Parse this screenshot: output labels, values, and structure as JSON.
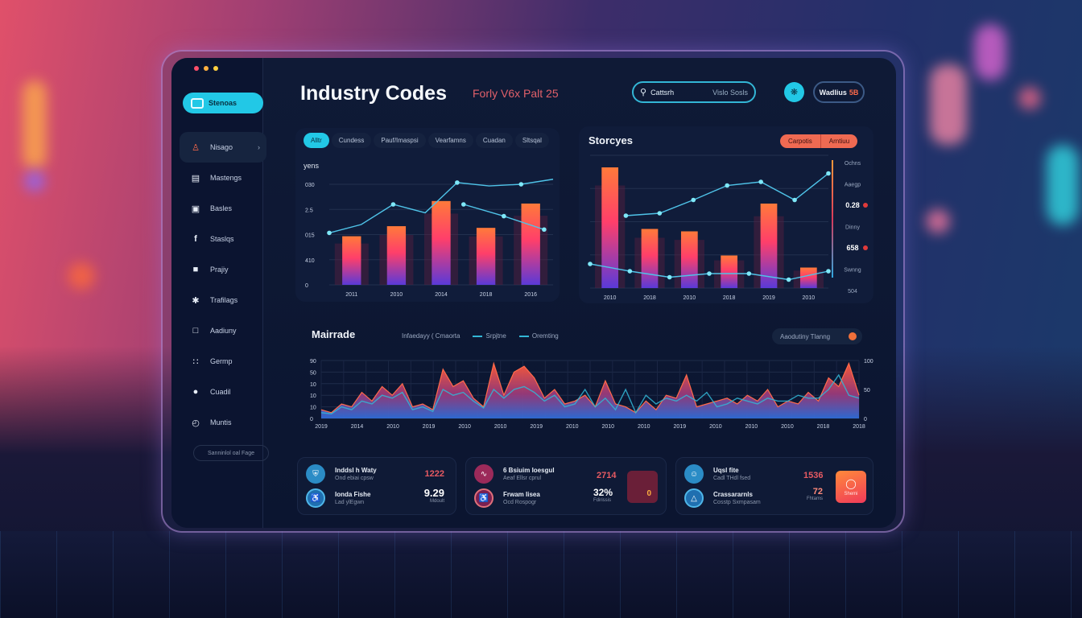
{
  "window": {
    "controls": [
      "close",
      "minimize",
      "maximize"
    ]
  },
  "brand": {
    "label": "Stenoas",
    "icon": "dashboard-icon"
  },
  "sidebar": {
    "items": [
      {
        "label": "Nisago",
        "icon": "user-stamp-icon",
        "active": true
      },
      {
        "label": "Mastengs",
        "icon": "card-icon"
      },
      {
        "label": "Basles",
        "icon": "grid-box-icon"
      },
      {
        "label": "Staslqs",
        "icon": "facebook-icon"
      },
      {
        "label": "Prajiy",
        "icon": "lock-icon"
      },
      {
        "label": "Trafilags",
        "icon": "gear-icon"
      },
      {
        "label": "Aadiuny",
        "icon": "monitor-icon"
      },
      {
        "label": "Germp",
        "icon": "dots-grid-icon"
      },
      {
        "label": "Cuadil",
        "icon": "person-icon"
      },
      {
        "label": "Muntis",
        "icon": "clock-icon"
      }
    ],
    "footer_button": "Sanninlol oal Fage"
  },
  "header": {
    "title": "Industry Codes",
    "subtitle": "Forly V6x Palt 25",
    "search": {
      "value": "Cattsrh",
      "placeholder": "Vislo Sosls"
    },
    "icon_button": "settings-bug-icon",
    "account_button": {
      "label": "Wadlius",
      "badge": "5B"
    }
  },
  "left_chart_card": {
    "tabs": [
      "Alltr",
      "Cundess",
      "Pauf/Imaspsi",
      "Vearfamns",
      "Cuadan",
      "Sltsqal"
    ],
    "active_tab": 0
  },
  "right_chart_card": {
    "title": "Storcyes",
    "segments": [
      "Carpotis",
      "Arntiuu"
    ]
  },
  "bottom_chart_card": {
    "title": "Mairrade",
    "legend": [
      "Infaedayy ( Cmaorta",
      "Srpjtne",
      "Oremting"
    ],
    "toggle_label": "Aaodutiny Tlanng"
  },
  "chart_data": [
    {
      "type": "bar",
      "title": "",
      "ylabel": "yens",
      "yticks": [
        "0",
        "410",
        "015",
        "2.5",
        "030"
      ],
      "categories": [
        "2011",
        "2010",
        "2014",
        "2018",
        "2016"
      ],
      "values": [
        58,
        70,
        100,
        68,
        97
      ],
      "ylim": [
        0,
        120
      ],
      "line_series": [
        {
          "name": "trend-a",
          "values": [
            62,
            72,
            96,
            86,
            122,
            118,
            120,
            126
          ]
        },
        {
          "name": "trend-b",
          "values": [
            96,
            82,
            66
          ]
        }
      ],
      "colors": {
        "bar_top": "#ff7a3a",
        "bar_mid": "#ff3f6a",
        "bar_bottom": "#5a3ad8",
        "line": "#4fc3e8"
      }
    },
    {
      "type": "bar",
      "title": "Storcyes",
      "categories": [
        "2010",
        "2018",
        "2010",
        "2018",
        "2019",
        "2010"
      ],
      "values": [
        100,
        49,
        47,
        27,
        70,
        17
      ],
      "ylim": [
        0,
        110
      ],
      "right_axis_labels": [
        "Ochns",
        "Aaegp",
        "0.28",
        "Dinny",
        "658",
        "Swnng",
        "504"
      ],
      "line_series": [
        {
          "name": "upper",
          "values": [
            60,
            62,
            73,
            85,
            88,
            73,
            95
          ]
        },
        {
          "name": "lower",
          "values": [
            20,
            14,
            9,
            12,
            12,
            7,
            14
          ]
        }
      ],
      "colors": {
        "bar_top": "#ff7a3a",
        "bar_mid": "#ff3f6a",
        "bar_bottom": "#5a3ad8",
        "line": "#4fc3e8"
      }
    },
    {
      "type": "area",
      "title": "Mairrade",
      "yticks_left": [
        "0",
        "10",
        "10",
        "10",
        "50",
        "90"
      ],
      "yticks_right": [
        "0",
        "50",
        "100"
      ],
      "x": [
        "2019",
        "2014",
        "2010",
        "2019",
        "2010",
        "2010",
        "2019",
        "2010",
        "2010",
        "2010",
        "2019",
        "2010",
        "2010",
        "2010",
        "2018",
        "2018"
      ],
      "series": [
        {
          "name": "Infaedayy ( Cmaorta",
          "values": [
            15,
            10,
            25,
            20,
            45,
            30,
            55,
            40,
            60,
            20,
            25,
            15,
            85,
            55,
            65,
            35,
            20,
            95,
            40,
            80,
            90,
            70,
            35,
            50,
            25,
            30,
            40,
            20,
            65,
            25,
            20,
            10,
            30,
            15,
            40,
            35,
            75,
            20,
            25,
            30,
            35,
            25,
            40,
            30,
            50,
            20,
            30,
            25,
            45,
            30,
            70,
            55,
            95,
            40
          ]
        },
        {
          "name": "Srpjtne",
          "values": [
            10,
            8,
            20,
            15,
            30,
            25,
            40,
            35,
            45,
            15,
            20,
            12,
            50,
            40,
            45,
            30,
            18,
            50,
            35,
            50,
            55,
            45,
            30,
            40,
            20,
            25,
            50,
            20,
            35,
            15,
            50,
            10,
            40,
            25,
            35,
            30,
            40,
            30,
            45,
            20,
            25,
            35,
            30,
            25,
            35,
            30,
            30,
            40,
            35,
            35,
            50,
            75,
            40,
            35
          ]
        }
      ],
      "colors": {
        "area_top": "#ff5a3a",
        "area_bottom": "#2f6cd8",
        "line": "#33b6d6"
      }
    }
  ],
  "stats": [
    {
      "rows": [
        {
          "name": "Inddsl h Waty",
          "sub": "Ond ebiai cpsw",
          "value": "1222",
          "value_color": "#e65a62",
          "icon": "shield-icon",
          "icon_color": "#2b8cc6"
        },
        {
          "name": "Ionda Fishe",
          "sub": "Lad ylEgwn",
          "value": "9.29",
          "unit": "Mdoult",
          "value_color": "#ffffff",
          "icon": "accessibility-icon",
          "icon_color": "#1f6fb0"
        }
      ]
    },
    {
      "rows": [
        {
          "name": "6 Bsiuim Ioesgul",
          "sub": "Aeaf Ellsr cprul",
          "value": "2714",
          "value_color": "#e65a62",
          "icon": "signature-icon",
          "icon_color": "#9c2a5a"
        },
        {
          "name": "Frwam Iisea",
          "sub": "Ocd Rospogr",
          "value": "32%",
          "unit": "Fdirissis",
          "value_color": "#ffffff",
          "icon": "wheelchair-icon",
          "icon_color": "#7a2050"
        }
      ],
      "thumb_value": "0"
    },
    {
      "rows": [
        {
          "name": "Uqsl fite",
          "sub": "Cadl THdl fsed",
          "value": "1536",
          "value_color": "#e65a62",
          "icon": "face-icon",
          "icon_color": "#2b8cc6"
        },
        {
          "name": "Crassararnls",
          "sub": "Cosstp Sxmpasam",
          "value": "72",
          "unit": "Fhtams",
          "value_color": "#ff8a7a",
          "icon": "alert-icon",
          "icon_color": "#1f6fb0"
        }
      ],
      "action": {
        "label": "Shemi",
        "icon": "chat-bubble-icon"
      }
    }
  ]
}
